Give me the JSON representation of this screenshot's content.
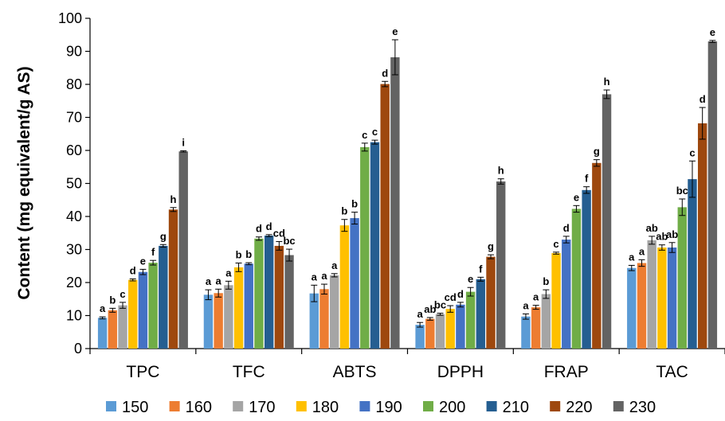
{
  "chart_data": {
    "type": "bar",
    "ylabel": "Content (mg equivalent/g AS)",
    "ylim": [
      0,
      100
    ],
    "yticks": [
      0,
      10,
      20,
      30,
      40,
      50,
      60,
      70,
      80,
      90,
      100
    ],
    "grid": false,
    "legend_position": "bottom",
    "categories": [
      "TPC",
      "TFC",
      "ABTS",
      "DPPH",
      "FRAP",
      "TAC"
    ],
    "series": [
      {
        "name": "150",
        "color": "#5B9BD5",
        "values": [
          9.3,
          16.3,
          16.7,
          7.2,
          9.7,
          24.4
        ],
        "errors": [
          0.3,
          1.5,
          2.5,
          0.7,
          0.8,
          0.8
        ],
        "labels": [
          "a",
          "a",
          "a",
          "a",
          "a",
          "a"
        ]
      },
      {
        "name": "160",
        "color": "#ED7D31",
        "values": [
          11.6,
          16.8,
          18.0,
          9.0,
          12.5,
          25.9
        ],
        "errors": [
          0.6,
          1.2,
          1.5,
          0.4,
          0.6,
          1.0
        ],
        "labels": [
          "b",
          "a",
          "a",
          "ab",
          "a",
          "a"
        ]
      },
      {
        "name": "170",
        "color": "#A5A5A5",
        "values": [
          13.1,
          19.2,
          22.2,
          10.4,
          16.5,
          32.8
        ],
        "errors": [
          0.9,
          1.2,
          0.5,
          0.3,
          1.3,
          1.2
        ],
        "labels": [
          "c",
          "a",
          "a",
          "bc",
          "b",
          "ab"
        ]
      },
      {
        "name": "180",
        "color": "#FFC000",
        "values": [
          20.8,
          24.6,
          37.3,
          12.0,
          28.9,
          30.6
        ],
        "errors": [
          0.3,
          1.3,
          1.8,
          1.0,
          0.3,
          0.8
        ],
        "labels": [
          "d",
          "b",
          "b",
          "cd",
          "c",
          "ab"
        ]
      },
      {
        "name": "190",
        "color": "#4472C4",
        "values": [
          23.2,
          25.7,
          39.5,
          13.3,
          33.0,
          30.6
        ],
        "errors": [
          0.8,
          0.3,
          1.8,
          0.7,
          1.0,
          1.5
        ],
        "labels": [
          "e",
          "b",
          "b",
          "d",
          "d",
          "ab"
        ]
      },
      {
        "name": "200",
        "color": "#70AD47",
        "values": [
          26.0,
          33.3,
          61.0,
          17.2,
          42.3,
          42.8
        ],
        "errors": [
          0.7,
          0.5,
          1.2,
          1.3,
          1.0,
          2.5
        ],
        "labels": [
          "f",
          "d",
          "c",
          "e",
          "e",
          "bc"
        ]
      },
      {
        "name": "210",
        "color": "#255E91",
        "values": [
          31.1,
          34.2,
          62.5,
          21.0,
          48.0,
          51.3
        ],
        "errors": [
          0.4,
          0.3,
          0.6,
          0.6,
          1.0,
          5.5
        ],
        "labels": [
          "g",
          "d",
          "c",
          "f",
          "f",
          "c"
        ]
      },
      {
        "name": "220",
        "color": "#9E480E",
        "values": [
          42.1,
          31.1,
          80.1,
          27.8,
          56.2,
          68.2
        ],
        "errors": [
          0.6,
          1.3,
          0.8,
          0.6,
          1.0,
          4.8
        ],
        "labels": [
          "h",
          "cd",
          "d",
          "g",
          "g",
          "d"
        ]
      },
      {
        "name": "230",
        "color": "#636363",
        "values": [
          59.7,
          28.3,
          88.2,
          50.6,
          77.0,
          93.0
        ],
        "errors": [
          0.2,
          1.8,
          5.3,
          0.8,
          1.3,
          0.3
        ],
        "labels": [
          "i",
          "bc",
          "e",
          "h",
          "h",
          "e"
        ]
      }
    ]
  }
}
